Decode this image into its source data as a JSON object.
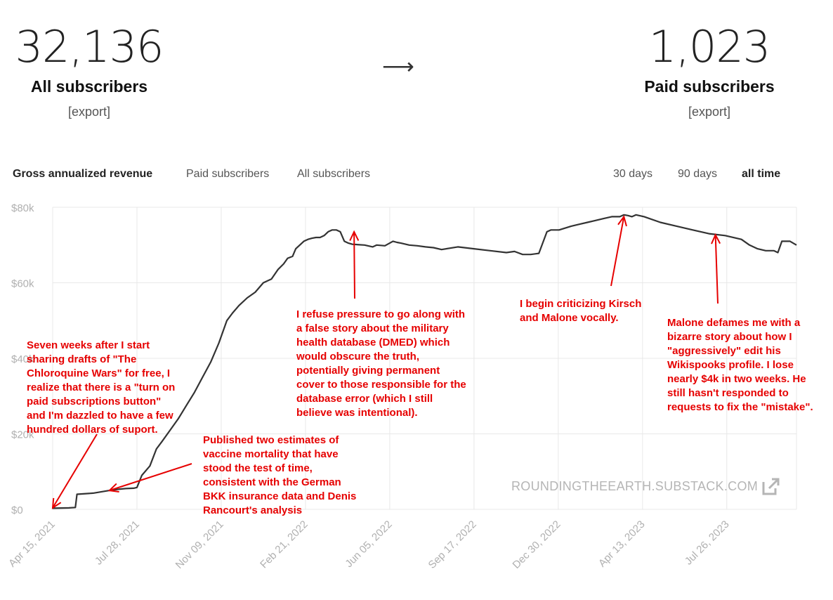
{
  "stats": {
    "all": {
      "value": "32,136",
      "label": "All subscribers",
      "export": "[export]"
    },
    "paid": {
      "value": "1,023",
      "label": "Paid subscribers",
      "export": "[export]"
    },
    "arrow": "⟶"
  },
  "tabs": {
    "metrics": [
      "Gross annualized revenue",
      "Paid subscribers",
      "All subscribers"
    ],
    "ranges": [
      "30 days",
      "90 days",
      "all time"
    ]
  },
  "watermark": "ROUNDINGTHEEARTH.SUBSTACK.COM",
  "annotations": {
    "a1": "Seven weeks after I start sharing drafts of \"The Chloroquine Wars\" for free, I realize that there is a \"turn on paid subscriptions button\" and I'm dazzled to have a few hundred dollars of suport.",
    "a2": "Published two estimates of vaccine mortality that have stood the test of time, consistent with the German BKK insurance data and Denis Rancourt's analysis",
    "a3": "I refuse pressure to go along with a false story about the military health database (DMED) which would obscure the truth, potentially giving permanent cover to those responsible for the database error (which I still believe was intentional).",
    "a4": "I begin criticizing Kirsch and Malone vocally.",
    "a5": "Malone defames me with a bizarre story about how I \"aggressively\" edit his Wikispooks profile. I lose nearly $4k in two weeks. He still hasn't responded to requests to fix the \"mistake\"."
  },
  "colors": {
    "line": "#333333",
    "grid": "#e8e8e8",
    "annotation": "#e60000",
    "axis_text": "#b0b0b0"
  },
  "chart_data": {
    "type": "line",
    "title": "Gross annualized revenue",
    "ylabel": "",
    "xlabel": "",
    "ylim": [
      0,
      80000
    ],
    "y_ticks": [
      "$0",
      "$20k",
      "$40k",
      "$60k",
      "$80k"
    ],
    "x_ticks": [
      "Apr 15, 2021",
      "Jul 28, 2021",
      "Nov 09, 2021",
      "Feb 21, 2022",
      "Jun 05, 2022",
      "Sep 17, 2022",
      "Dec 30, 2022",
      "Apr 13, 2023",
      "Jul 26, 2023"
    ],
    "x_tick_days": [
      0,
      104,
      208,
      312,
      416,
      520,
      624,
      728,
      832
    ],
    "series": [
      {
        "name": "Gross annualized revenue",
        "x_days": [
          0,
          20,
          28,
          30,
          50,
          70,
          80,
          90,
          100,
          104,
          110,
          120,
          128,
          135,
          145,
          155,
          165,
          175,
          185,
          195,
          205,
          215,
          222,
          230,
          240,
          250,
          260,
          270,
          278,
          285,
          290,
          296,
          300,
          305,
          310,
          315,
          320,
          325,
          330,
          335,
          340,
          345,
          350,
          355,
          360,
          365,
          370,
          385,
          395,
          400,
          410,
          420,
          425,
          430,
          440,
          450,
          460,
          470,
          480,
          500,
          520,
          540,
          560,
          570,
          580,
          590,
          600,
          610,
          615,
          625,
          640,
          650,
          660,
          670,
          680,
          690,
          700,
          705,
          710,
          715,
          720,
          730,
          750,
          770,
          790,
          810,
          830,
          850,
          860,
          870,
          880,
          890,
          895,
          900,
          910,
          918
        ],
        "values": [
          300,
          400,
          500,
          4000,
          4300,
          5000,
          5300,
          5500,
          5600,
          5800,
          9000,
          11500,
          16000,
          18000,
          21000,
          24000,
          27500,
          31000,
          35000,
          39000,
          44000,
          50000,
          52000,
          54000,
          56000,
          57500,
          60000,
          61000,
          63500,
          65000,
          66500,
          67000,
          69000,
          70000,
          71000,
          71500,
          71800,
          72000,
          72000,
          72500,
          73500,
          74000,
          74000,
          73500,
          71000,
          70500,
          70200,
          70000,
          69500,
          70000,
          69800,
          71000,
          70700,
          70500,
          70000,
          69800,
          69500,
          69300,
          68800,
          69500,
          69000,
          68500,
          68000,
          68300,
          67500,
          67500,
          67800,
          73500,
          74000,
          74000,
          75000,
          75500,
          76000,
          76500,
          77000,
          77500,
          77500,
          78000,
          77800,
          77500,
          78000,
          77500,
          76000,
          75000,
          74000,
          73000,
          72500,
          71500,
          70000,
          69000,
          68500,
          68500,
          68000,
          71000,
          71000,
          70000
        ]
      }
    ]
  }
}
